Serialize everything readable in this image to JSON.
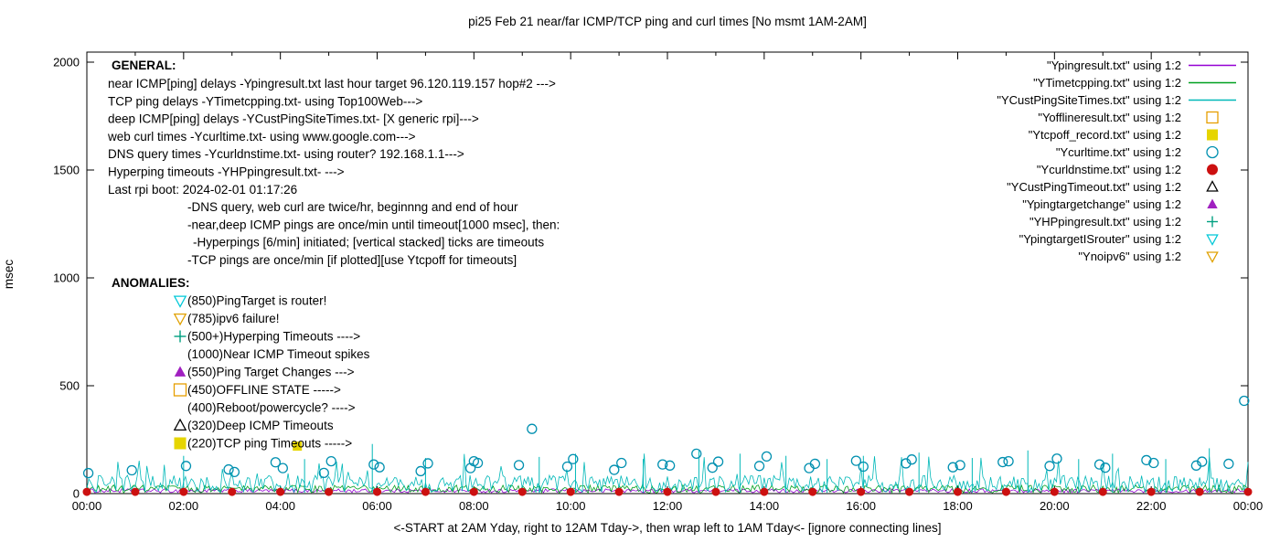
{
  "chart_data": {
    "type": "line",
    "title": "pi25 Feb 21  near/far ICMP/TCP ping and curl times [No msmt 1AM-2AM]",
    "ylabel": "msec",
    "xlabel_note": "<-START at 2AM Yday, right to 12AM Tday->, then wrap left to 1AM Tday<- [ignore connecting lines]",
    "ylim": [
      0,
      2000
    ],
    "yticks": [
      0,
      500,
      1000,
      1500,
      2000
    ],
    "x_hours": [
      0,
      24
    ],
    "xtick_labels": [
      "00:00",
      "02:00",
      "04:00",
      "06:00",
      "08:00",
      "10:00",
      "12:00",
      "14:00",
      "16:00",
      "18:00",
      "20:00",
      "22:00",
      "00:00"
    ],
    "legend": [
      {
        "label": "\"Ypingresult.txt\" using 1:2",
        "symbol": "line",
        "color": "#9400d3"
      },
      {
        "label": "\"YTimetcpping.txt\" using 1:2",
        "symbol": "line",
        "color": "#00a020"
      },
      {
        "label": "\"YCustPingSiteTimes.txt\" using 1:2",
        "symbol": "line",
        "color": "#00b8b8"
      },
      {
        "label": "\"Yofflineresult.txt\" using 1:2",
        "symbol": "sq-open",
        "color": "#e69f00"
      },
      {
        "label": "\"Ytcpoff_record.txt\" using 1:2",
        "symbol": "sq-fill",
        "color": "#e6d500"
      },
      {
        "label": "\"Ycurltime.txt\" using 1:2",
        "symbol": "circ-open",
        "color": "#0090b0"
      },
      {
        "label": "\"Ycurldnstime.txt\" using 1:2",
        "symbol": "circ-fill",
        "color": "#cc1010"
      },
      {
        "label": "\"YCustPingTimeout.txt\" using 1:2",
        "symbol": "tri-up-open",
        "color": "#000000"
      },
      {
        "label": "\"Ypingtargetchange\" using 1:2",
        "symbol": "tri-up-fill",
        "color": "#a020c0"
      },
      {
        "label": "\"YHPpingresult.txt\" using 1:2",
        "symbol": "plus",
        "color": "#00a080"
      },
      {
        "label": "\"YpingtargetISrouter\" using 1:2",
        "symbol": "tri-down-open",
        "color": "#00c8d8"
      },
      {
        "label": "\"Ynoipv6\" using 1:2",
        "symbol": "tri-down-open",
        "color": "#e0a000"
      }
    ],
    "general": {
      "header": "GENERAL:",
      "lines": [
        {
          "text": "near ICMP[ping] delays -Ypingresult.txt last hour target 96.120.119.157 hop#2 --->",
          "indent": 0
        },
        {
          "text": "TCP ping delays -YTimetcpping.txt- using Top100Web--->",
          "indent": 0
        },
        {
          "text": "deep ICMP[ping] delays -YCustPingSiteTimes.txt- [X generic rpi]--->",
          "indent": 0
        },
        {
          "text": "web curl times -Ycurltime.txt- using www.google.com--->",
          "indent": 0
        },
        {
          "text": "DNS query times -Ycurldnstime.txt- using router? 192.168.1.1--->",
          "indent": 0
        },
        {
          "text": "Hyperping timeouts -YHPpingresult.txt- --->",
          "indent": 0
        },
        {
          "text": "Last rpi boot: 2024-02-01 01:17:26",
          "indent": 0
        },
        {
          "text": "-DNS query, web curl are twice/hr, beginnng and end of hour",
          "indent": 1
        },
        {
          "text": "-near,deep ICMP pings are once/min until timeout[1000 msec], then:",
          "indent": 1
        },
        {
          "text": "-Hyperpings [6/min] initiated; [vertical stacked] ticks are timeouts",
          "indent": 2
        },
        {
          "text": "-TCP pings are once/min [if plotted][use Ytcpoff for timeouts]",
          "indent": 1
        }
      ]
    },
    "anomalies": {
      "header": "ANOMALIES:",
      "items": [
        {
          "marker": "tri-down-open",
          "color": "#00c8d8",
          "text": "(850)PingTarget is router!"
        },
        {
          "marker": "tri-down-open",
          "color": "#e0a000",
          "text": "(785)ipv6 failure!"
        },
        {
          "marker": "plus",
          "color": "#00a080",
          "text": "(500+)Hyperping Timeouts ---->"
        },
        {
          "marker": "none",
          "color": "#000000",
          "text": "(1000)Near ICMP Timeout spikes"
        },
        {
          "marker": "tri-up-fill",
          "color": "#a020c0",
          "text": "(550)Ping Target Changes --->"
        },
        {
          "marker": "sq-open",
          "color": "#e69f00",
          "text": "(450)OFFLINE STATE ----->"
        },
        {
          "marker": "none",
          "color": "#000000",
          "text": "(400)Reboot/powercycle? ---->"
        },
        {
          "marker": "tri-up-open",
          "color": "#000000",
          "text": "(320)Deep ICMP Timeouts"
        },
        {
          "marker": "sq-fill",
          "color": "#e6d500",
          "text": "(220)TCP ping Timeouts ----->"
        }
      ]
    },
    "series": {
      "noise_series": [
        {
          "name": "Ypingresult",
          "color": "#9400d3",
          "range": [
            4,
            22
          ]
        },
        {
          "name": "YTimetcpping",
          "color": "#00a020",
          "range": [
            3,
            40
          ]
        },
        {
          "name": "YCustPingSiteTimes",
          "color": "#00b8b8",
          "range": [
            6,
            85
          ],
          "spike_chance": 0.05,
          "spike_range": [
            90,
            185
          ]
        }
      ],
      "noise_points": 600,
      "noise_seed": 1234,
      "hp_spikes": {
        "color": "#00b8b8",
        "points": [
          [
            2.0,
            175
          ],
          [
            4.5,
            160
          ],
          [
            5.9,
            230
          ],
          [
            7.0,
            165
          ],
          [
            9.35,
            170
          ],
          [
            10.1,
            185
          ],
          [
            11.5,
            160
          ],
          [
            12.65,
            200
          ],
          [
            13.5,
            185
          ],
          [
            14.45,
            175
          ],
          [
            15.3,
            160
          ],
          [
            16.05,
            175
          ],
          [
            17.2,
            190
          ],
          [
            18.3,
            165
          ],
          [
            19.45,
            200
          ],
          [
            20.5,
            160
          ],
          [
            21.2,
            185
          ],
          [
            22.3,
            160
          ],
          [
            23.2,
            210
          ]
        ]
      },
      "points_series": [
        {
          "name": "Ytcpoff_record",
          "marker": "sq-fill",
          "color": "#e6d500",
          "size": 5,
          "points": [
            [
              4.35,
              220
            ]
          ]
        },
        {
          "name": "Ycurltime",
          "marker": "circ-open",
          "color": "#0090b0",
          "size": 5,
          "points": [
            [
              0.03,
              95
            ],
            [
              0.93,
              108
            ],
            [
              2.05,
              128
            ],
            [
              2.93,
              112
            ],
            [
              3.05,
              100
            ],
            [
              3.9,
              145
            ],
            [
              4.05,
              118
            ],
            [
              4.9,
              96
            ],
            [
              5.05,
              150
            ],
            [
              5.93,
              135
            ],
            [
              6.05,
              122
            ],
            [
              6.9,
              104
            ],
            [
              7.05,
              140
            ],
            [
              7.93,
              118
            ],
            [
              8.0,
              150
            ],
            [
              8.08,
              142
            ],
            [
              8.93,
              132
            ],
            [
              9.2,
              300
            ],
            [
              9.93,
              125
            ],
            [
              10.05,
              160
            ],
            [
              10.9,
              110
            ],
            [
              11.05,
              142
            ],
            [
              11.9,
              135
            ],
            [
              12.05,
              130
            ],
            [
              12.6,
              185
            ],
            [
              12.93,
              120
            ],
            [
              13.05,
              148
            ],
            [
              13.9,
              128
            ],
            [
              14.05,
              172
            ],
            [
              14.93,
              118
            ],
            [
              15.05,
              138
            ],
            [
              15.9,
              152
            ],
            [
              16.05,
              125
            ],
            [
              16.93,
              140
            ],
            [
              17.05,
              158
            ],
            [
              17.9,
              122
            ],
            [
              18.05,
              132
            ],
            [
              18.93,
              146
            ],
            [
              19.05,
              150
            ],
            [
              19.9,
              128
            ],
            [
              20.05,
              162
            ],
            [
              20.93,
              135
            ],
            [
              21.05,
              120
            ],
            [
              21.9,
              155
            ],
            [
              22.05,
              142
            ],
            [
              22.93,
              130
            ],
            [
              23.05,
              148
            ],
            [
              23.6,
              138
            ],
            [
              23.92,
              430
            ]
          ]
        },
        {
          "name": "Ycurldnstime",
          "marker": "circ-fill",
          "color": "#cc1010",
          "size": 4.5,
          "points": [
            [
              0,
              8
            ],
            [
              1,
              8
            ],
            [
              2,
              8
            ],
            [
              3,
              8
            ],
            [
              4,
              8
            ],
            [
              5,
              8
            ],
            [
              6,
              8
            ],
            [
              7,
              8
            ],
            [
              8,
              8
            ],
            [
              9,
              8
            ],
            [
              10,
              8
            ],
            [
              11,
              8
            ],
            [
              12,
              8
            ],
            [
              13,
              8
            ],
            [
              14,
              8
            ],
            [
              15,
              8
            ],
            [
              16,
              8
            ],
            [
              17,
              8
            ],
            [
              18,
              8
            ],
            [
              19,
              8
            ],
            [
              20,
              8
            ],
            [
              21,
              8
            ],
            [
              22,
              8
            ],
            [
              23,
              8
            ],
            [
              24,
              8
            ]
          ]
        }
      ]
    }
  }
}
